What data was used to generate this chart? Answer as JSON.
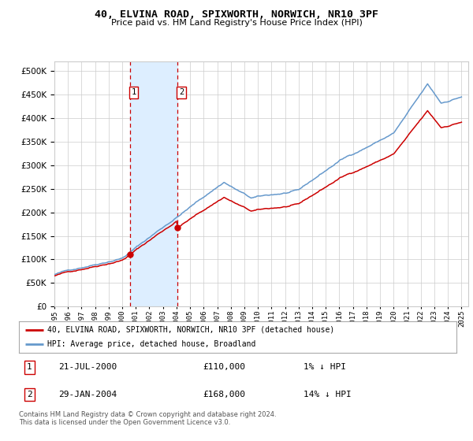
{
  "title": "40, ELVINA ROAD, SPIXWORTH, NORWICH, NR10 3PF",
  "subtitle": "Price paid vs. HM Land Registry's House Price Index (HPI)",
  "legend_line1": "40, ELVINA ROAD, SPIXWORTH, NORWICH, NR10 3PF (detached house)",
  "legend_line2": "HPI: Average price, detached house, Broadland",
  "footnote": "Contains HM Land Registry data © Crown copyright and database right 2024.\nThis data is licensed under the Open Government Licence v3.0.",
  "transaction1_date": "21-JUL-2000",
  "transaction1_price": "£110,000",
  "transaction1_hpi": "1% ↓ HPI",
  "transaction2_date": "29-JAN-2004",
  "transaction2_price": "£168,000",
  "transaction2_hpi": "14% ↓ HPI",
  "red_line_color": "#cc0000",
  "blue_line_color": "#6699cc",
  "shading_color": "#ddeeff",
  "grid_color": "#cccccc",
  "background_color": "#ffffff",
  "ylim_min": 0,
  "ylim_max": 520000,
  "sale1_year": 2000.55,
  "sale2_year": 2004.08,
  "sale1_price": 110000,
  "sale2_price": 168000
}
